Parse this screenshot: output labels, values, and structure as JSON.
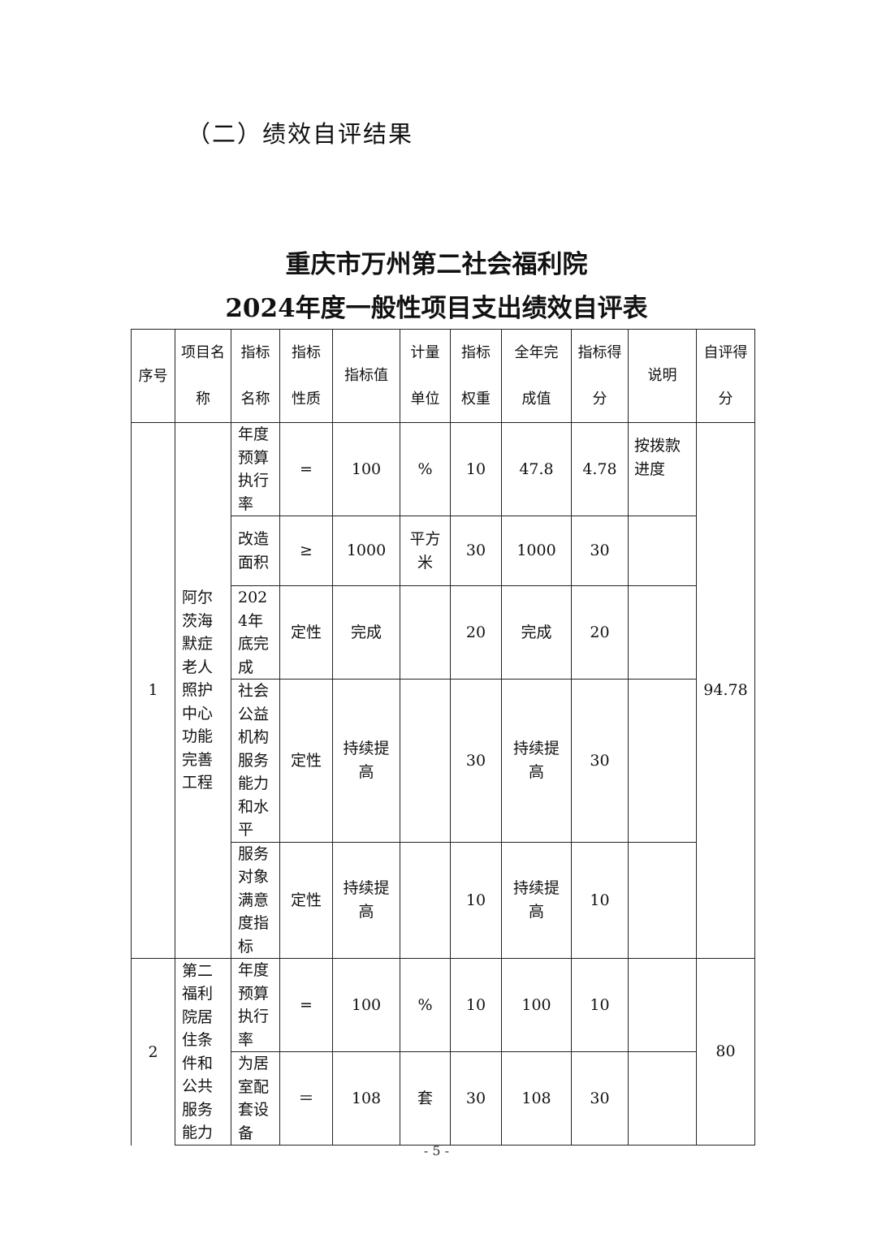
{
  "section_heading": "（二）绩效自评结果",
  "title_line1": "重庆市万州第二社会福利院",
  "title_line2": "2024年度一般性项目支出绩效自评表",
  "headers": [
    "序号",
    "项目名称",
    "指标名称",
    "指标性质",
    "指标值",
    "计量单位",
    "指标权重",
    "全年完成值",
    "指标得分",
    "说明",
    "自评得分"
  ],
  "projects": [
    {
      "seq": "1",
      "name": "阿尔茨海默症老人照护中心功能完善工程",
      "score": "94.78",
      "indicators": [
        {
          "name": "年度预算执行率",
          "nature": "=",
          "value": "100",
          "unit": "%",
          "weight": "10",
          "actual": "47.8",
          "points": "4.78",
          "note": "按拨款进度"
        },
        {
          "name": "改造面积",
          "nature": "≥",
          "value": "1000",
          "unit": "平方米",
          "weight": "30",
          "actual": "1000",
          "points": "30",
          "note": ""
        },
        {
          "name": "2024年底完成",
          "nature": "定性",
          "value": "完成",
          "unit": "",
          "weight": "20",
          "actual": "完成",
          "points": "20",
          "note": ""
        },
        {
          "name": "社会公益机构服务能力和水平",
          "nature": "定性",
          "value": "持续提高",
          "unit": "",
          "weight": "30",
          "actual": "持续提高",
          "points": "30",
          "note": ""
        },
        {
          "name": "服务对象满意度指标",
          "nature": "定性",
          "value": "持续提高",
          "unit": "",
          "weight": "10",
          "actual": "持续提高",
          "points": "10",
          "note": ""
        }
      ]
    },
    {
      "seq": "2",
      "name": "第二福利院居住条件和公共服务能力",
      "score": "80",
      "indicators": [
        {
          "name": "年度预算执行率",
          "nature": "=",
          "value": "100",
          "unit": "%",
          "weight": "10",
          "actual": "100",
          "points": "10",
          "note": ""
        },
        {
          "name": "为居室配套设备",
          "nature": "＝",
          "value": "108",
          "unit": "套",
          "weight": "30",
          "actual": "108",
          "points": "30",
          "note": ""
        }
      ]
    }
  ],
  "page_number": "- 5 -"
}
